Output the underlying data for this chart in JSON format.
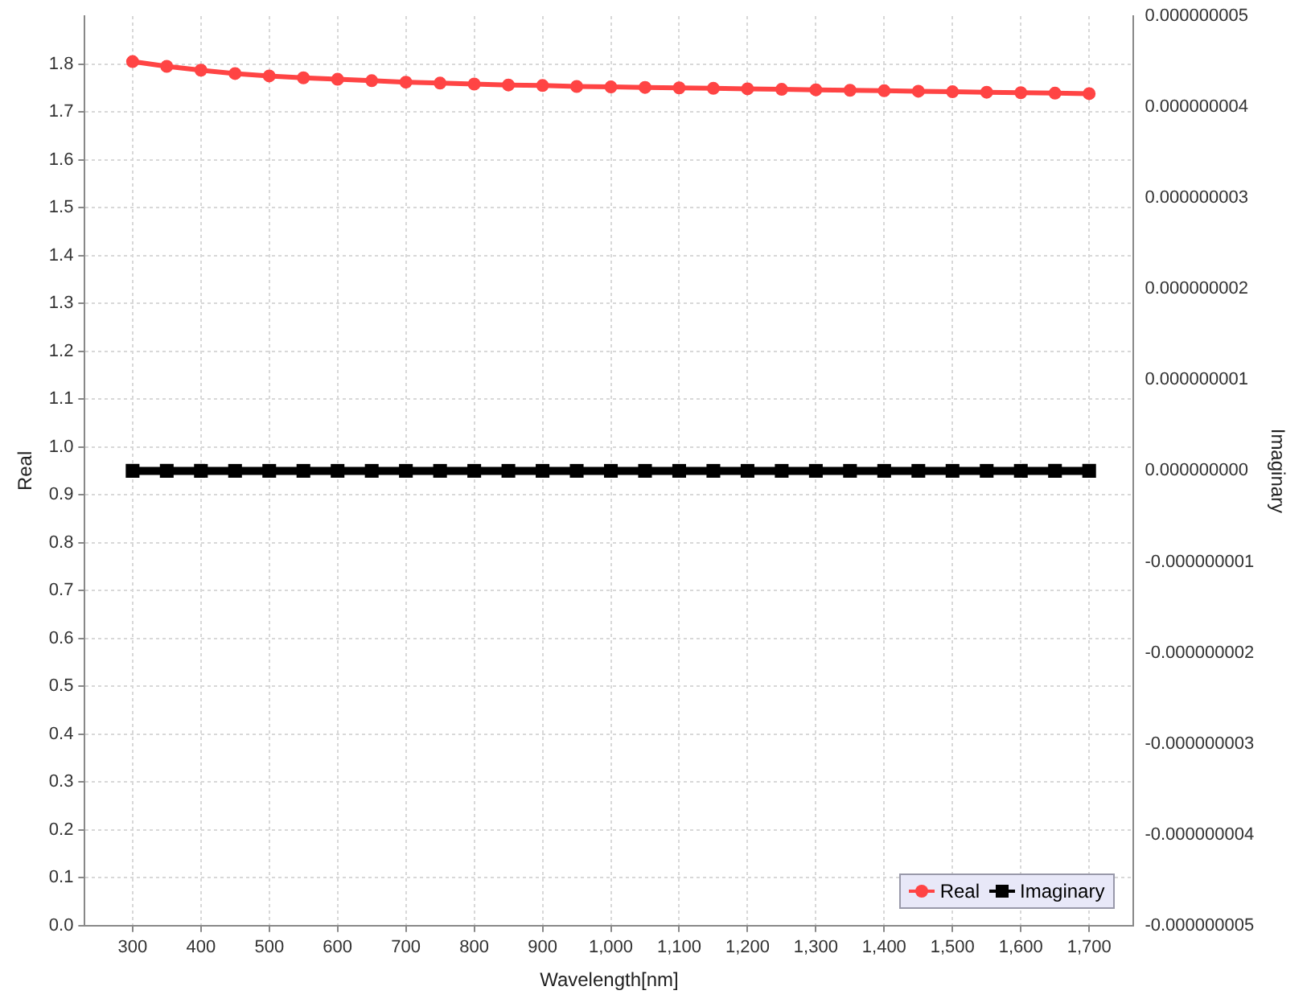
{
  "chart_data": {
    "type": "line",
    "xlabel": "Wavelength[nm]",
    "ylabel": "Real",
    "y2label": "Imaginary",
    "x": [
      300,
      350,
      400,
      450,
      500,
      550,
      600,
      650,
      700,
      750,
      800,
      850,
      900,
      950,
      1000,
      1050,
      1100,
      1150,
      1200,
      1250,
      1300,
      1350,
      1400,
      1450,
      1500,
      1550,
      1600,
      1650,
      1700
    ],
    "series": [
      {
        "name": "Real",
        "color": "#ff4444",
        "marker": "circle",
        "values": [
          1.805,
          1.795,
          1.787,
          1.78,
          1.775,
          1.771,
          1.768,
          1.765,
          1.762,
          1.76,
          1.758,
          1.756,
          1.755,
          1.753,
          1.752,
          1.751,
          1.75,
          1.749,
          1.748,
          1.747,
          1.746,
          1.745,
          1.744,
          1.743,
          1.742,
          1.741,
          1.74,
          1.739,
          1.738
        ]
      },
      {
        "name": "Imaginary",
        "color": "#000000",
        "marker": "square",
        "axis": "y2",
        "values": [
          0,
          0,
          0,
          0,
          0,
          0,
          0,
          0,
          0,
          0,
          0,
          0,
          0,
          0,
          0,
          0,
          0,
          0,
          0,
          0,
          0,
          0,
          0,
          0,
          0,
          0,
          0,
          0,
          0
        ]
      }
    ],
    "xlim": [
      230,
      1765
    ],
    "xticks": [
      300,
      400,
      500,
      600,
      700,
      800,
      900,
      {
        "value": 1000,
        "label": "1,000"
      },
      {
        "value": 1100,
        "label": "1,100"
      },
      {
        "value": 1200,
        "label": "1,200"
      },
      {
        "value": 1300,
        "label": "1,300"
      },
      {
        "value": 1400,
        "label": "1,400"
      },
      {
        "value": 1500,
        "label": "1,500"
      },
      {
        "value": 1600,
        "label": "1,600"
      },
      {
        "value": 1700,
        "label": "1,700"
      }
    ],
    "ylim": [
      0,
      1.9
    ],
    "yticks": [
      {
        "value": 0,
        "label": "0.0"
      },
      0.1,
      0.2,
      0.3,
      0.4,
      0.5,
      0.6,
      0.7,
      0.8,
      0.9,
      {
        "value": 1,
        "label": "1.0"
      },
      1.1,
      1.2,
      1.3,
      1.4,
      1.5,
      1.6,
      1.7,
      1.8
    ],
    "y2lim": [
      -5e-09,
      5e-09
    ],
    "y2ticks": [
      {
        "value": -5e-09,
        "label": "-0.000000005"
      },
      {
        "value": -4e-09,
        "label": "-0.000000004"
      },
      {
        "value": -3e-09,
        "label": "-0.000000003"
      },
      {
        "value": -2e-09,
        "label": "-0.000000002"
      },
      {
        "value": -1e-09,
        "label": "-0.000000001"
      },
      {
        "value": 0,
        "label": "0.000000000"
      },
      {
        "value": 1e-09,
        "label": "0.000000001"
      },
      {
        "value": 2e-09,
        "label": "0.000000002"
      },
      {
        "value": 3e-09,
        "label": "0.000000003"
      },
      {
        "value": 4e-09,
        "label": "0.000000004"
      },
      {
        "value": 5e-09,
        "label": "0.000000005"
      }
    ],
    "grid": true,
    "legend": "bottom right",
    "line_style": "solid"
  }
}
